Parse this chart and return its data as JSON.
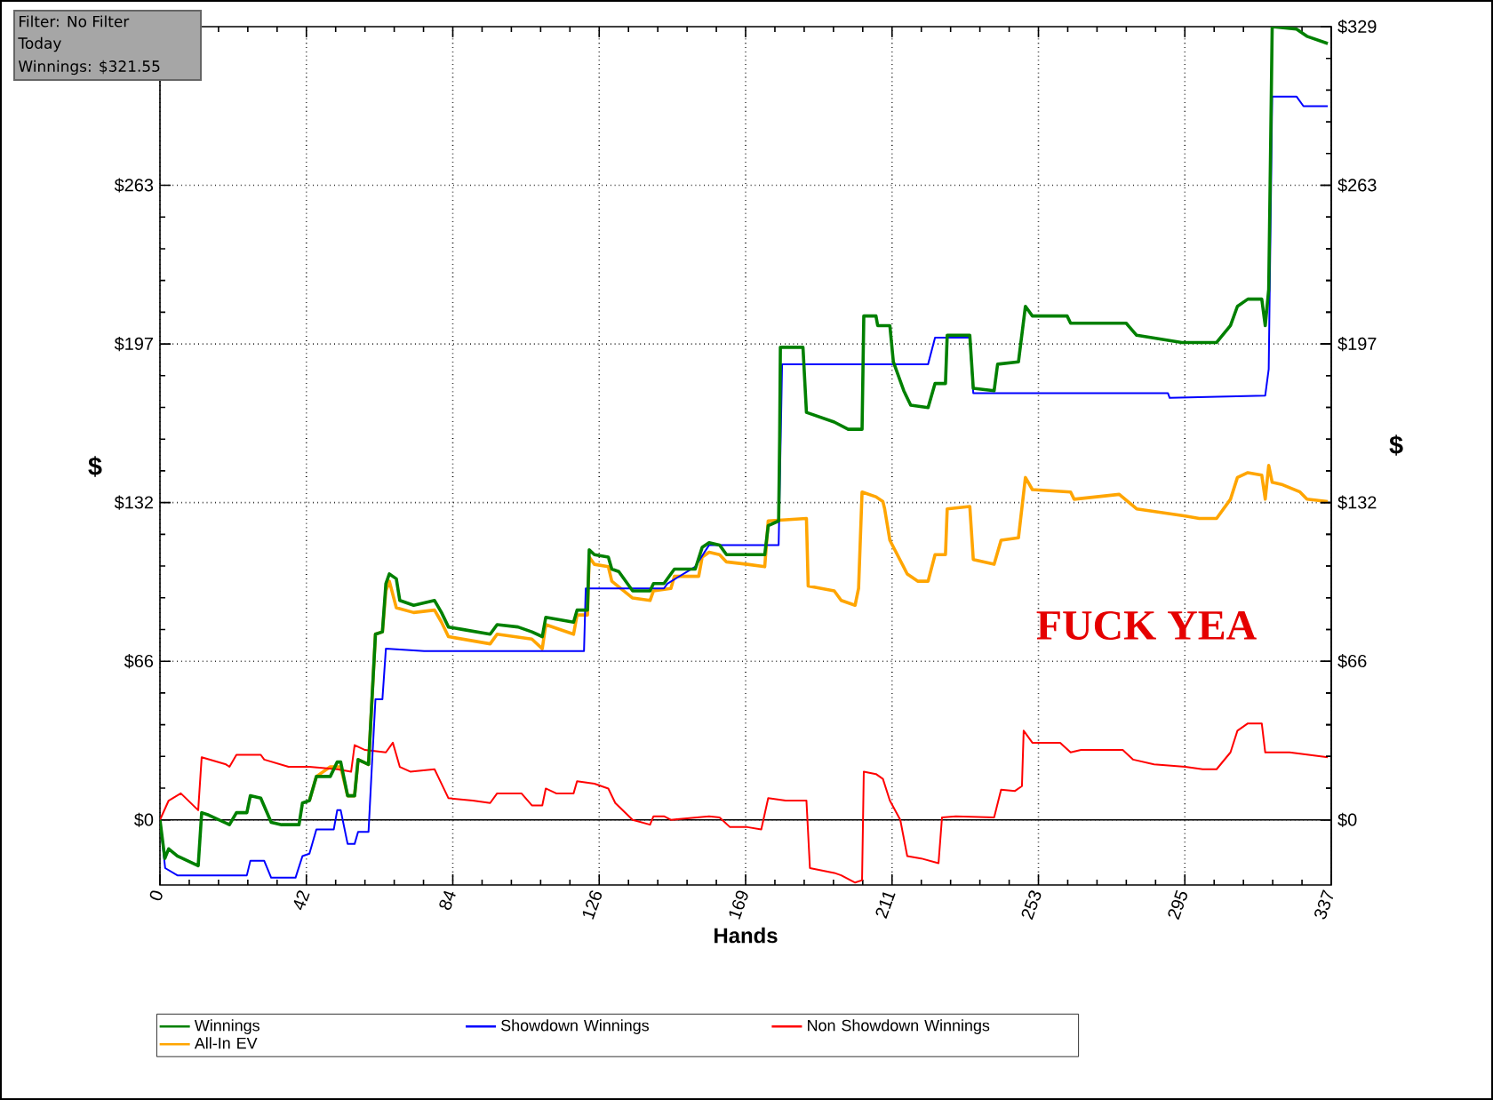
{
  "chart_data": {
    "type": "line",
    "xlabel": "Hands",
    "ylabel": "$",
    "y2label": "$",
    "xlim": [
      0,
      337
    ],
    "ylim": [
      -27,
      329
    ],
    "y2lim": [
      -27,
      329
    ],
    "xticks": [
      {
        "value": 0,
        "label": "0"
      },
      {
        "value": 42.125,
        "label": "42"
      },
      {
        "value": 84.25,
        "label": "84"
      },
      {
        "value": 126.375,
        "label": "126"
      },
      {
        "value": 168.5,
        "label": "169"
      },
      {
        "value": 210.625,
        "label": "211"
      },
      {
        "value": 252.75,
        "label": "253"
      },
      {
        "value": 294.875,
        "label": "295"
      },
      {
        "value": 337,
        "label": "337"
      }
    ],
    "yticks": [
      {
        "value": 0,
        "label": "$0"
      },
      {
        "value": 65.8,
        "label": "$66"
      },
      {
        "value": 131.6,
        "label": "$132"
      },
      {
        "value": 197.4,
        "label": "$197"
      },
      {
        "value": 263.2,
        "label": "$263"
      }
    ],
    "y2ticks": [
      {
        "value": 0,
        "label": "$0"
      },
      {
        "value": 65.8,
        "label": "$66"
      },
      {
        "value": 131.6,
        "label": "$132"
      },
      {
        "value": 197.4,
        "label": "$197"
      },
      {
        "value": 263.2,
        "label": "$263"
      },
      {
        "value": 329,
        "label": "$329"
      }
    ],
    "grid": true,
    "legend": "bottom",
    "marker": "none",
    "line_style": "solid",
    "ref_lines": [
      {
        "axis": "y",
        "value": 0,
        "color": "#000000"
      }
    ],
    "annotations": [
      "Filter: No Filter",
      "Today",
      "Winnings: $321.55",
      "FUCK YEA"
    ],
    "series": [
      {
        "name": "Winnings",
        "color": "#008000",
        "x": [
          0,
          1.4,
          2.5,
          5,
          11,
          12,
          14,
          20,
          22,
          25,
          26,
          29,
          32,
          35,
          40,
          41,
          43,
          45,
          49,
          51,
          52,
          54,
          56,
          57,
          60,
          61,
          62,
          64,
          65,
          66,
          68,
          69,
          73,
          79,
          81,
          83,
          87,
          95,
          97,
          103,
          107,
          110,
          111,
          115,
          119,
          120,
          123,
          123.5,
          125,
          129,
          130,
          132,
          136,
          141,
          142,
          145,
          148,
          154,
          156,
          158,
          161,
          163,
          169,
          174,
          175,
          178,
          178.3,
          178.5,
          185,
          186,
          194,
          198,
          202,
          202.5,
          206,
          206.5,
          210,
          211,
          214,
          216,
          221,
          223,
          226,
          226.5,
          233,
          234,
          240,
          241,
          247,
          249,
          251,
          261,
          262,
          278,
          281,
          294,
          304,
          308,
          310,
          313,
          317,
          318,
          319,
          319.5,
          320,
          327,
          330,
          336
        ],
        "values": [
          0,
          -16,
          -12,
          -15,
          -19,
          3,
          2,
          -2,
          3,
          3,
          10,
          9,
          -1,
          -2,
          -2,
          7,
          8,
          18,
          18,
          24,
          24,
          10,
          10,
          25,
          23,
          50,
          77,
          78,
          98,
          102,
          100,
          91,
          89,
          91,
          86,
          80,
          79,
          77,
          81,
          80,
          78,
          76,
          84,
          83,
          82,
          87,
          87,
          112,
          110,
          109,
          104,
          103,
          95,
          95,
          98,
          98,
          104,
          104,
          113,
          115,
          114,
          110,
          110,
          110,
          122,
          124,
          159,
          196,
          196,
          169,
          165,
          162,
          162,
          209,
          209,
          205,
          205,
          190,
          178,
          172,
          171,
          181,
          181,
          201,
          201,
          179,
          178,
          189,
          190,
          213,
          209,
          209,
          206,
          206,
          201,
          198,
          198,
          205,
          213,
          216,
          216,
          205,
          220,
          274,
          329,
          328,
          325,
          322
        ]
      },
      {
        "name": "Showdown Winnings",
        "color": "#0000ff",
        "x": [
          0,
          1.5,
          5,
          25,
          26,
          30,
          32,
          39,
          41,
          43,
          45,
          50,
          51,
          52,
          54,
          56,
          57,
          60,
          61,
          62,
          64,
          65,
          76,
          122,
          122.5,
          145,
          146,
          154,
          158,
          169,
          178,
          179,
          221,
          223,
          233,
          234,
          290,
          290.5,
          318,
          319,
          320,
          327,
          329,
          336
        ],
        "values": [
          0,
          -20,
          -23,
          -23,
          -17,
          -17,
          -24,
          -24,
          -15,
          -14,
          -4,
          -4,
          4,
          4,
          -10,
          -10,
          -5,
          -5,
          23,
          50,
          50,
          71,
          70,
          70,
          96,
          96,
          98,
          105,
          114,
          114,
          114,
          189,
          189,
          200,
          200,
          177,
          177,
          175,
          176,
          187,
          300,
          300,
          296,
          296
        ]
      },
      {
        "name": "Non Showdown Winnings",
        "color": "#ff0000",
        "x": [
          0,
          2.5,
          6,
          11,
          12,
          19,
          20,
          22,
          29,
          30,
          37,
          43,
          51,
          55,
          56,
          59,
          65,
          67,
          69,
          72,
          79,
          80,
          83,
          90,
          95,
          97,
          104,
          107,
          110,
          111,
          114,
          119,
          120,
          125,
          129,
          131,
          136,
          141,
          142,
          145,
          147,
          158,
          161,
          164,
          169,
          173,
          175,
          180,
          186,
          187,
          194,
          196,
          200,
          202,
          202.5,
          206,
          208,
          210,
          213,
          215,
          219,
          224,
          225,
          229,
          240,
          242,
          246,
          248,
          248.5,
          251,
          259,
          262,
          265,
          277,
          280,
          286,
          295,
          300,
          304,
          308,
          310,
          313,
          317,
          318,
          325,
          336
        ],
        "values": [
          0,
          8,
          11,
          4,
          26,
          23,
          22,
          27,
          27,
          25,
          22,
          22,
          21,
          20,
          31,
          29,
          28,
          32,
          22,
          20,
          21,
          18,
          9,
          8,
          7,
          11,
          11,
          6,
          6,
          13,
          11,
          11,
          16,
          15,
          13,
          7,
          0,
          -2,
          1.5,
          1.5,
          0,
          1.5,
          1,
          -3,
          -3,
          -4,
          9,
          8,
          8,
          -20,
          -22,
          -23,
          -26,
          -25,
          20,
          19,
          17,
          8,
          0,
          -15,
          -16,
          -18,
          1,
          1.5,
          1,
          12.5,
          12,
          14,
          37,
          32,
          32,
          28,
          29,
          29,
          25,
          23,
          22,
          21,
          21,
          28,
          37,
          40,
          40,
          28,
          28,
          26
        ]
      },
      {
        "name": "All-In EV",
        "color": "#ffa500",
        "x": [
          43,
          45,
          49,
          51,
          52,
          54,
          56,
          57,
          60,
          61,
          62,
          64,
          65,
          66,
          68,
          73,
          79,
          81,
          83,
          95,
          97,
          107,
          110,
          111,
          119,
          120,
          123,
          123.5,
          125,
          129,
          130,
          136,
          141,
          142,
          147,
          148,
          155,
          156,
          158,
          161,
          163,
          169,
          174,
          175,
          186,
          186.5,
          194,
          196,
          200,
          201,
          202,
          206,
          208,
          208.5,
          210,
          215,
          218,
          221,
          223,
          226,
          226.5,
          233,
          234,
          240,
          242,
          247,
          249,
          251,
          262,
          263,
          276,
          281,
          295,
          299,
          304,
          308,
          310,
          313,
          317,
          318,
          319,
          320,
          323,
          328,
          330,
          336
        ],
        "values": [
          8,
          18,
          22,
          22,
          22,
          10,
          10,
          25,
          23,
          50,
          77,
          78,
          95,
          99,
          88,
          86,
          87,
          82,
          76,
          73,
          77,
          75,
          71,
          81,
          77,
          85,
          85,
          109,
          106,
          105,
          99,
          92,
          91,
          95,
          96,
          101,
          101,
          109,
          111,
          110,
          107,
          106,
          105,
          124,
          125,
          97,
          95,
          91,
          89,
          96,
          136,
          134,
          132,
          129,
          116,
          102,
          99,
          99,
          110,
          110,
          129,
          130,
          108,
          106,
          116,
          117,
          142,
          137,
          136,
          133,
          135,
          129,
          126,
          125,
          125,
          133,
          142,
          144,
          143,
          133,
          147,
          140,
          139,
          136,
          133,
          132
        ]
      }
    ]
  }
}
